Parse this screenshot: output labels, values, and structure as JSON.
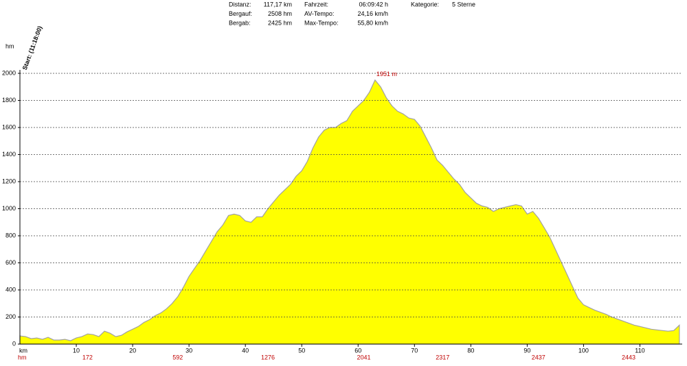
{
  "chart_data": {
    "type": "area",
    "stats": [
      {
        "label": "Distanz:",
        "value": "117,17 km"
      },
      {
        "label": "Bergauf:",
        "value": "2508 hm"
      },
      {
        "label": "Bergab:",
        "value": "2425 hm"
      },
      {
        "label": "Fahrzeit:",
        "value": "06:09:42 h"
      },
      {
        "label": "AV-Tempo:",
        "value": "24,16 km/h"
      },
      {
        "label": "Max-Tempo:",
        "value": "55,80 km/h"
      },
      {
        "label": "Kategorie:",
        "value": "5 Sterne"
      }
    ],
    "start_label": "Start: (11:18:00)",
    "y_label": "hm",
    "x_label": "km",
    "ascent_label": "hm",
    "peak": {
      "x": 63,
      "value": 1951,
      "label": "1951 m"
    },
    "ascent_km": [
      12,
      28,
      44,
      61,
      75,
      92,
      108
    ],
    "ascent_hm": [
      172,
      592,
      1276,
      2041,
      2317,
      2437,
      2443
    ],
    "x": [
      0,
      1,
      2,
      3,
      4,
      5,
      6,
      7,
      8,
      9,
      10,
      11,
      12,
      13,
      14,
      15,
      16,
      17,
      18,
      19,
      20,
      21,
      22,
      23,
      24,
      25,
      26,
      27,
      28,
      29,
      30,
      31,
      32,
      33,
      34,
      35,
      36,
      37,
      38,
      39,
      40,
      41,
      42,
      43,
      44,
      45,
      46,
      47,
      48,
      49,
      50,
      51,
      52,
      53,
      54,
      55,
      56,
      57,
      58,
      59,
      60,
      61,
      62,
      63,
      64,
      65,
      66,
      67,
      68,
      69,
      70,
      71,
      72,
      73,
      74,
      75,
      76,
      77,
      78,
      79,
      80,
      81,
      82,
      83,
      84,
      85,
      86,
      87,
      88,
      89,
      90,
      91,
      92,
      93,
      94,
      95,
      96,
      97,
      98,
      99,
      100,
      101,
      102,
      103,
      104,
      105,
      106,
      107,
      108,
      109,
      110,
      111,
      112,
      113,
      114,
      115,
      116,
      117
    ],
    "values": [
      60,
      55,
      40,
      45,
      35,
      50,
      30,
      30,
      35,
      25,
      45,
      55,
      75,
      70,
      55,
      95,
      80,
      55,
      65,
      90,
      110,
      130,
      160,
      180,
      210,
      230,
      260,
      300,
      350,
      420,
      500,
      560,
      620,
      690,
      760,
      830,
      880,
      950,
      960,
      950,
      910,
      900,
      940,
      940,
      1000,
      1050,
      1100,
      1140,
      1180,
      1240,
      1280,
      1350,
      1450,
      1530,
      1580,
      1600,
      1600,
      1630,
      1650,
      1720,
      1760,
      1800,
      1860,
      1951,
      1900,
      1820,
      1760,
      1720,
      1700,
      1670,
      1660,
      1610,
      1530,
      1450,
      1360,
      1320,
      1270,
      1220,
      1180,
      1120,
      1080,
      1040,
      1020,
      1010,
      980,
      1000,
      1010,
      1020,
      1030,
      1020,
      960,
      980,
      930,
      860,
      790,
      700,
      610,
      520,
      430,
      340,
      290,
      270,
      250,
      235,
      220,
      200,
      185,
      170,
      155,
      140,
      130,
      120,
      110,
      105,
      100,
      95,
      100,
      140
    ],
    "color": "#ffff00",
    "line_color": "#a0a0a0",
    "xlim": [
      0,
      117.5
    ],
    "ylim": [
      0,
      2000
    ],
    "xticks": [
      10,
      20,
      30,
      40,
      50,
      60,
      70,
      80,
      90,
      100,
      110
    ],
    "yticks": [
      0,
      200,
      400,
      600,
      800,
      1000,
      1200,
      1400,
      1600,
      1800,
      2000
    ],
    "grid": true
  }
}
